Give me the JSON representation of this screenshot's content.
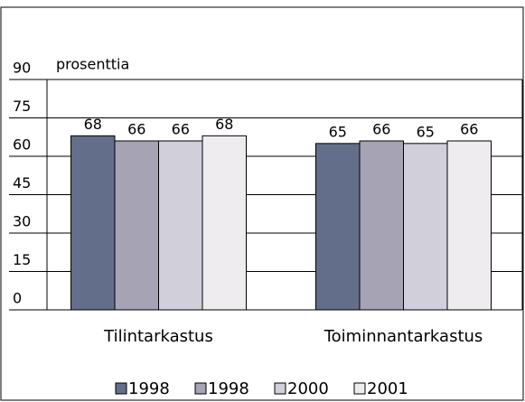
{
  "chart_data": {
    "type": "bar",
    "y_axis_label": "prosenttia",
    "categories": [
      "Tilintarkastus",
      "Toiminnantarkastus"
    ],
    "series": [
      {
        "name": "1998",
        "color": "#636e8a",
        "values": [
          68,
          65
        ]
      },
      {
        "name": "1998",
        "color": "#a5a3b4",
        "values": [
          66,
          66
        ]
      },
      {
        "name": "2000",
        "color": "#d0cfda",
        "values": [
          66,
          65
        ]
      },
      {
        "name": "2001",
        "color": "#efecf0",
        "values": [
          68,
          66
        ]
      }
    ],
    "ylim": [
      0,
      90
    ],
    "yticks": [
      0,
      15,
      30,
      45,
      60,
      75,
      90
    ],
    "grid": true,
    "legend": "bottom"
  }
}
